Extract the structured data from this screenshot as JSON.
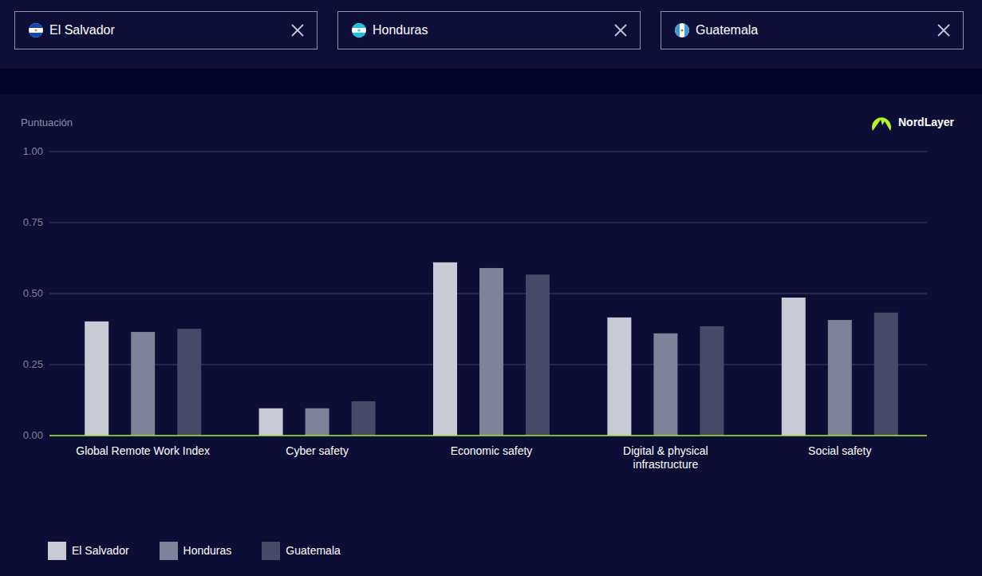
{
  "header": {
    "selectors": [
      "El Salvador",
      "Honduras",
      "Guatemala"
    ]
  },
  "brand": "NordLayer",
  "chart_data": {
    "type": "bar",
    "y_label": "Puntuación",
    "categories": [
      "Global Remote Work Index",
      "Cyber safety",
      "Economic safety",
      "Digital & physical infrastructure",
      "Social safety"
    ],
    "series": [
      {
        "name": "El Salvador",
        "color": "#c8cad6",
        "values": [
          0.402,
          0.096,
          0.61,
          0.416,
          0.486
        ]
      },
      {
        "name": "Honduras",
        "color": "#7f8399",
        "values": [
          0.365,
          0.096,
          0.59,
          0.36,
          0.407
        ]
      },
      {
        "name": "Guatemala",
        "color": "#474a66",
        "values": [
          0.376,
          0.121,
          0.567,
          0.385,
          0.433
        ]
      }
    ],
    "ylim": [
      0,
      1
    ],
    "yticks": [
      {
        "value": 0,
        "label": "0.00"
      },
      {
        "value": 0.25,
        "label": "0.25"
      },
      {
        "value": 0.5,
        "label": "0.50"
      },
      {
        "value": 0.75,
        "label": "0.75"
      },
      {
        "value": 1,
        "label": "1.00"
      }
    ],
    "grid": true,
    "legend": "bottom-left"
  }
}
